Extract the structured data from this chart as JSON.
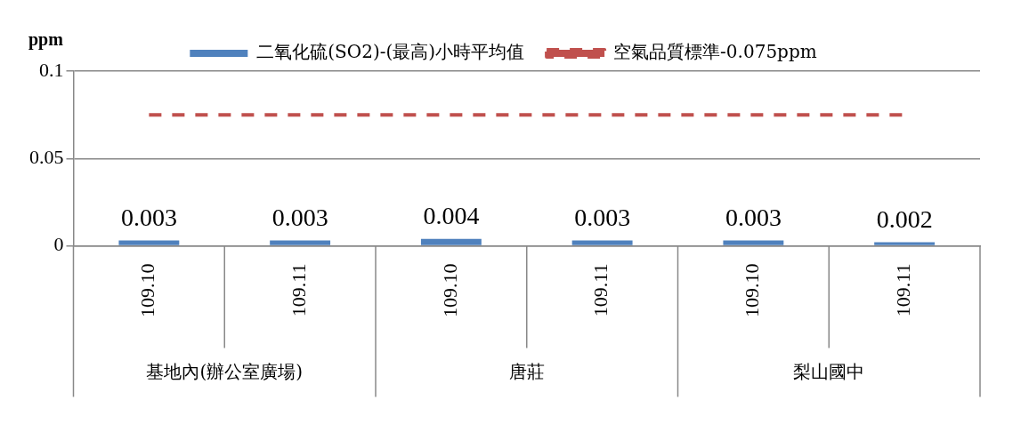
{
  "chart_data": {
    "type": "bar",
    "ylabel": "ppm",
    "categories": [
      "109.10",
      "109.11",
      "109.10",
      "109.11",
      "109.10",
      "109.11"
    ],
    "series": [
      {
        "name": "二氧化硫(SO2)-(最高)小時平均值",
        "color": "#4f81bd",
        "values": [
          0.003,
          0.003,
          0.004,
          0.003,
          0.003,
          0.002
        ],
        "value_labels": [
          "0.003",
          "0.003",
          "0.004",
          "0.003",
          "0.003",
          "0.002"
        ]
      },
      {
        "name": "空氣品質標準-0.075ppm",
        "type": "line",
        "color": "#c0504d",
        "line_style": "dashed",
        "marker": "none",
        "values": [
          0.075,
          0.075,
          0.075,
          0.075,
          0.075,
          0.075
        ]
      }
    ],
    "annotations": [
      "基地內(辦公室廣場)",
      "唐莊",
      "梨山國中"
    ],
    "ylim": [
      0,
      0.1
    ],
    "yticks": [
      0,
      0.05,
      0.1
    ],
    "grid": "y",
    "legend": "top"
  }
}
